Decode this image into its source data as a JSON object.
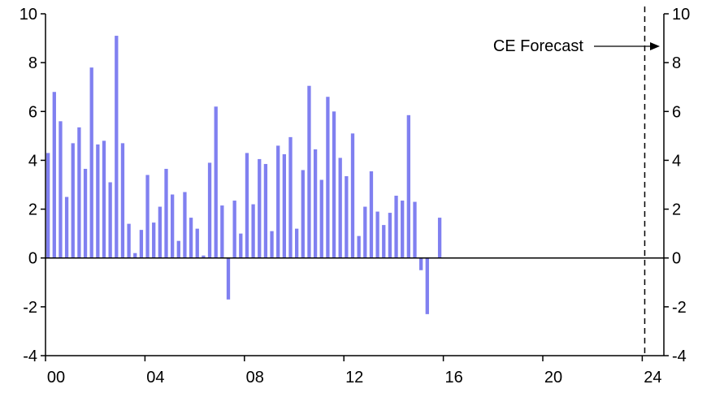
{
  "chart_data": {
    "type": "bar",
    "title": "",
    "xlabel": "",
    "ylabel": "",
    "ylim": [
      -4,
      10
    ],
    "yticks": [
      10,
      8,
      6,
      4,
      2,
      0,
      -2,
      -4
    ],
    "ytick_labels": [
      "10",
      "8",
      "6",
      "4",
      "2",
      "0",
      "-2",
      "-4"
    ],
    "right_axis": true,
    "x_start": 2000.0,
    "x_step": 0.25,
    "xticks": [
      2000,
      2004,
      2008,
      2012,
      2016,
      2020,
      2024
    ],
    "xtick_labels": [
      "00",
      "04",
      "08",
      "12",
      "16",
      "20",
      "24"
    ],
    "bar_color": "#8080f0",
    "values": [
      4.3,
      6.8,
      5.6,
      2.5,
      4.7,
      5.35,
      3.65,
      7.8,
      4.65,
      4.8,
      3.1,
      9.1,
      4.7,
      1.4,
      0.2,
      1.15,
      3.4,
      1.45,
      2.1,
      3.65,
      2.6,
      0.7,
      2.7,
      1.65,
      1.2,
      0.1,
      3.9,
      6.2,
      2.15,
      -1.7,
      2.35,
      1.0,
      4.3,
      2.2,
      4.05,
      3.85,
      1.1,
      4.6,
      4.25,
      4.95,
      1.2,
      3.6,
      7.05,
      4.45,
      3.2,
      6.6,
      6.0,
      4.1,
      3.35,
      5.1,
      0.9,
      2.1,
      3.55,
      1.9,
      1.35,
      1.85,
      2.55,
      2.35,
      5.85,
      2.3,
      -0.5,
      -2.3,
      0.0,
      1.65
    ],
    "forecast_line_x": 2024.1,
    "annotations": [
      {
        "text": "CE Forecast"
      }
    ]
  }
}
